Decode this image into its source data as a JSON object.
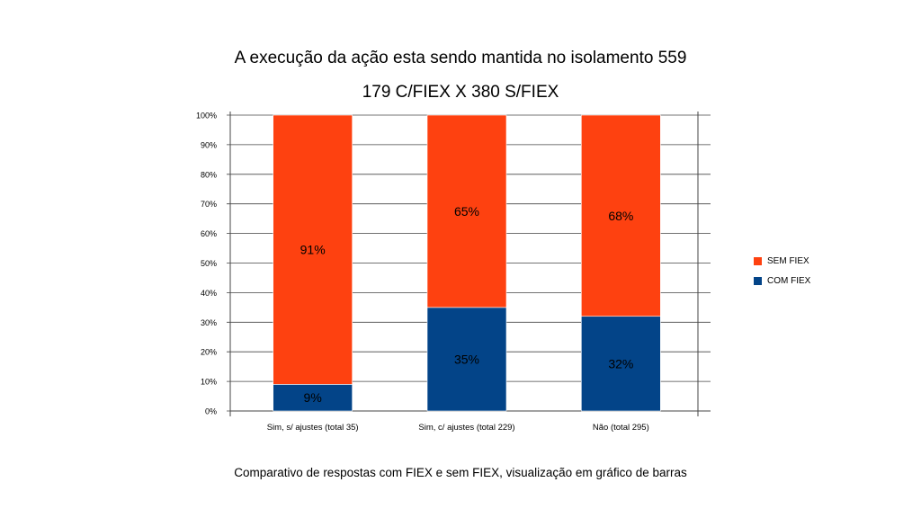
{
  "title": "A execução da ação esta sendo mantida no isolamento 559",
  "subtitle": "179 C/FIEX X 380 S/FIEX",
  "caption": "Comparativo de respostas com FIEX e sem FIEX, visualização em gráfico de barras",
  "chart_data": {
    "type": "bar",
    "stacked": true,
    "percent": true,
    "categories": [
      "Sim, s/ ajustes (total 35)",
      "Sim, c/ ajustes (total 229)",
      "Não (total 295)"
    ],
    "series": [
      {
        "name": "COM FIEX",
        "values": [
          9,
          35,
          32
        ],
        "labels": [
          "9%",
          "35%",
          "32%"
        ],
        "color": "#034488"
      },
      {
        "name": "SEM FIEX",
        "values": [
          91,
          65,
          68
        ],
        "labels": [
          "91%",
          "65%",
          "68%"
        ],
        "color": "#FE4110"
      }
    ],
    "yticks": [
      "0%",
      "10%",
      "20%",
      "30%",
      "40%",
      "50%",
      "60%",
      "70%",
      "80%",
      "90%",
      "100%"
    ],
    "ylim": [
      0,
      100
    ],
    "legend": {
      "position": "right",
      "items": [
        "SEM FIEX",
        "COM FIEX"
      ]
    }
  }
}
